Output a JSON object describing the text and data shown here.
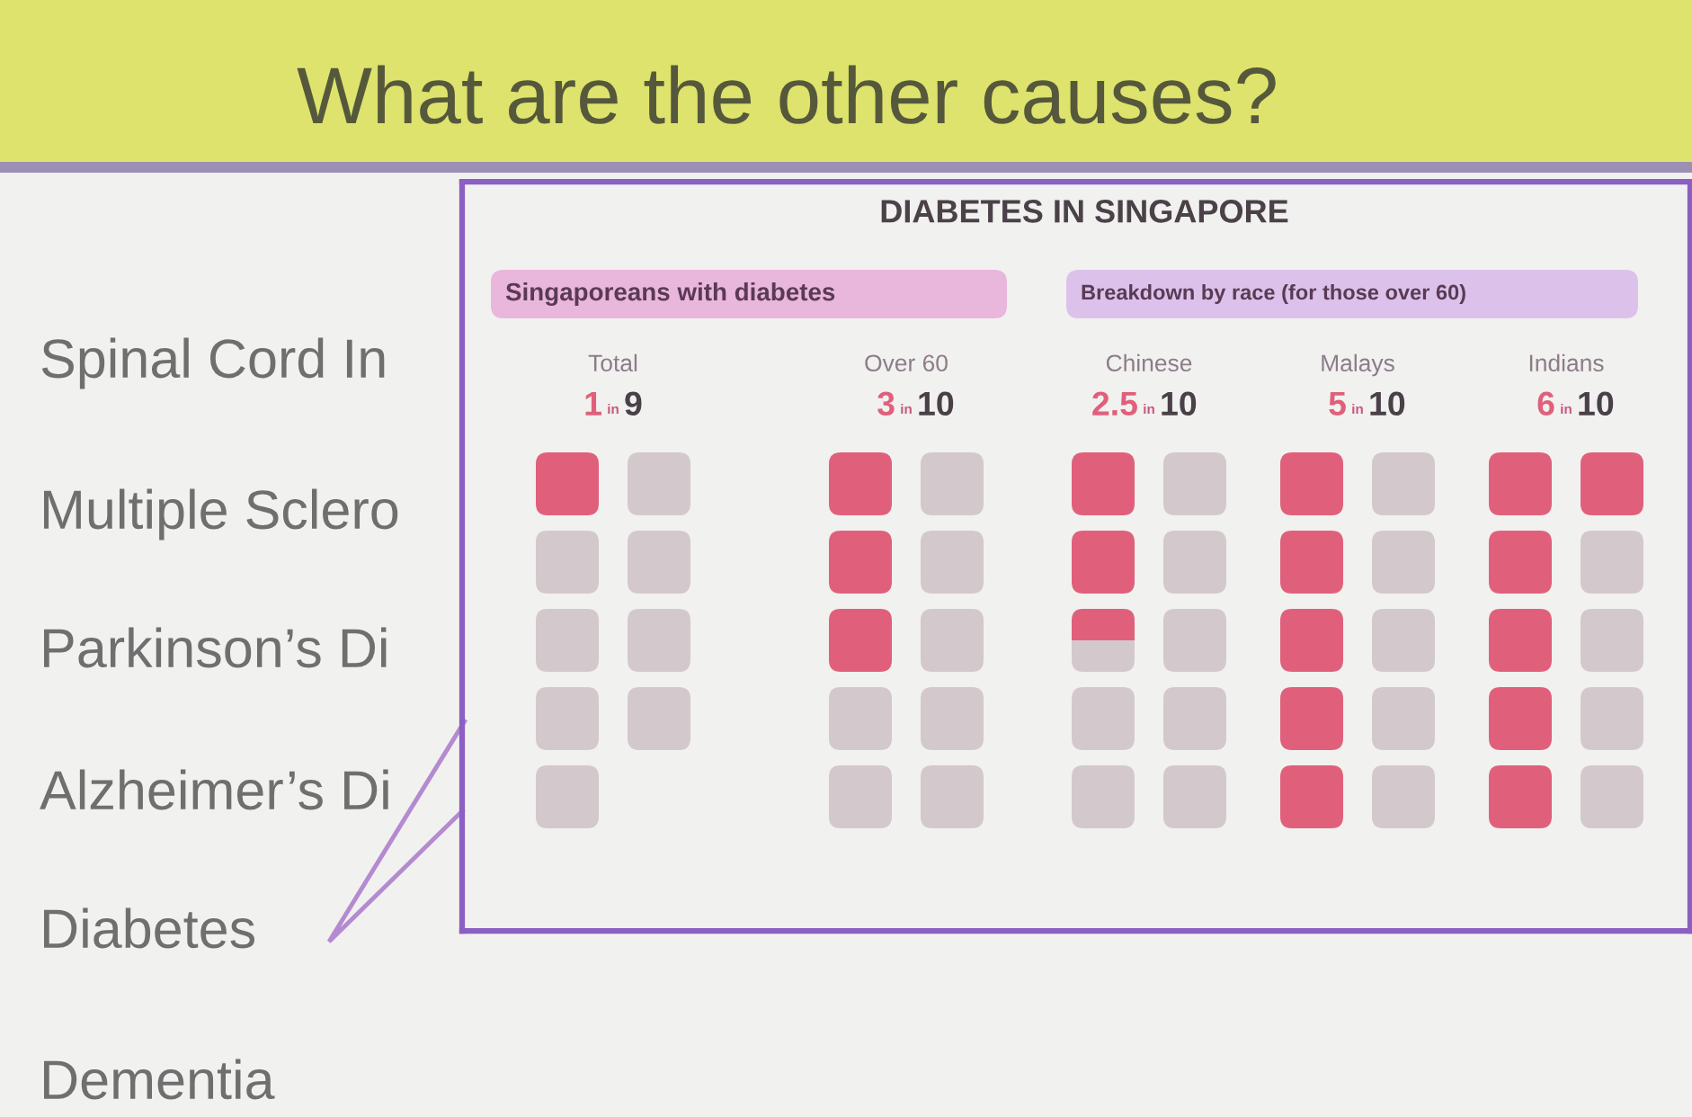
{
  "chart_data": {
    "type": "other",
    "title": "What are the other causes?",
    "subtitle": "DIABETES IN SINGAPORE",
    "categories": [
      "Total",
      "Over 60",
      "Chinese",
      "Malays",
      "Indians"
    ],
    "series": [
      {
        "color": "#e0607c",
        "values": [
          1,
          3,
          2.5,
          5,
          6
        ],
        "value_labels": [
          "1",
          "3",
          "2.5",
          "5",
          "6"
        ]
      },
      {
        "color": "#d3c9cd",
        "values": [
          9,
          10,
          10,
          10,
          10
        ],
        "value_labels": [
          "9",
          "10",
          "10",
          "10",
          "10"
        ]
      }
    ],
    "annotations": [
      "Singaporeans with diabetes",
      "Breakdown by race (for those over 60)",
      "in",
      "in",
      "in",
      "in",
      "in",
      "Spinal Cord In",
      "Multiple Sclero",
      "Parkinson’s Di",
      "Alzheimer’s Di",
      "Diabetes",
      "Dementia"
    ]
  }
}
